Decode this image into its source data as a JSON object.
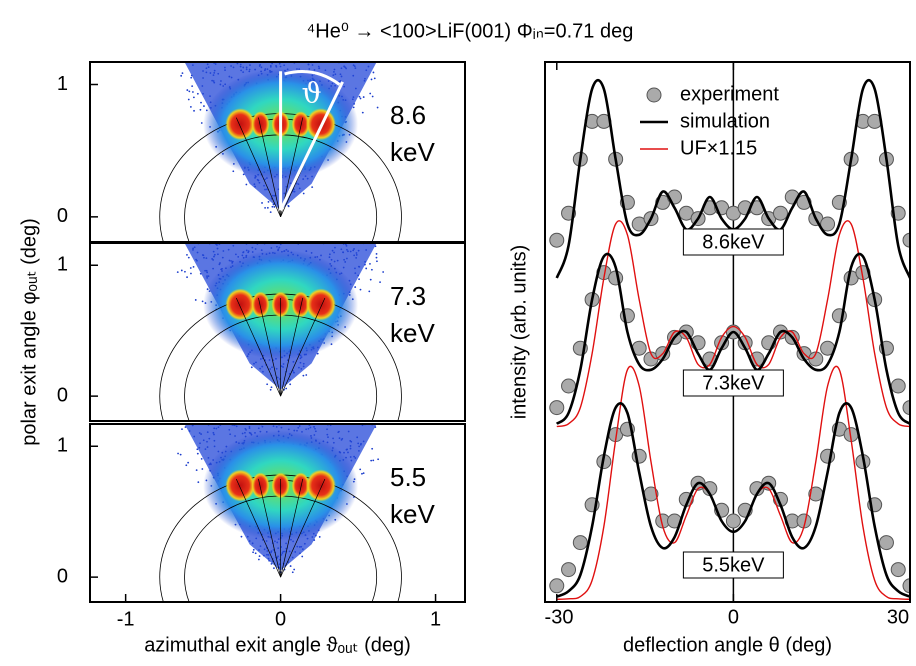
{
  "title": "⁴He⁰ → <100>LiF(001) Φᵢₙ=0.71 deg",
  "chart_data": [
    {
      "type": "image",
      "label": [
        "8.6",
        "keV"
      ],
      "annotation": "ϑ",
      "xlim": [
        -1.23,
        1.19
      ],
      "ylim": [
        -0.19,
        1.17
      ],
      "yticks": [
        0,
        1
      ]
    },
    {
      "type": "image",
      "label": [
        "7.3",
        "keV"
      ],
      "ylabel": "polar exit angle φₒᵤₜ (deg)",
      "xlim": [
        -1.23,
        1.19
      ],
      "ylim": [
        -0.19,
        1.17
      ],
      "yticks": [
        0,
        1
      ]
    },
    {
      "type": "image",
      "label": [
        "5.5",
        "keV"
      ],
      "xlabel": "azimuthal exit angle ϑₒᵤₜ (deg)",
      "xlim": [
        -1.23,
        1.19
      ],
      "ylim": [
        -0.19,
        1.17
      ],
      "yticks": [
        0,
        1
      ],
      "xticks": [
        -1,
        0,
        1
      ]
    },
    {
      "type": "line",
      "xlabel": "deflection angle θ (deg)",
      "ylabel": "intensity (arb. units)",
      "xlim": [
        -32,
        30
      ],
      "ylim": [
        0,
        10
      ],
      "xticks": [
        -30,
        0,
        30
      ],
      "vline": 0,
      "legend": "top",
      "curve_labels": [
        "8.6keV",
        "7.3keV",
        "5.5keV"
      ],
      "x": [
        -30,
        -28,
        -26,
        -24,
        -22,
        -20,
        -18,
        -16,
        -14,
        -12,
        -10,
        -8,
        -6,
        -4,
        -2,
        0,
        2,
        4,
        6,
        8,
        10,
        12,
        14,
        16,
        18,
        20,
        22,
        24,
        26,
        28,
        30
      ],
      "series": [
        {
          "name": "experiment",
          "color": "#aaaaaa",
          "marker": "circle",
          "values": [
            6.7,
            7.2,
            8.2,
            8.9,
            8.9,
            8.2,
            7.4,
            7.0,
            7.1,
            7.4,
            7.5,
            7.2,
            7.1,
            7.3,
            7.3,
            7.2,
            7.3,
            7.3,
            7.1,
            7.2,
            7.5,
            7.4,
            7.1,
            7.0,
            7.4,
            8.2,
            8.9,
            8.9,
            8.2,
            7.2,
            6.7
          ]
        },
        {
          "name": "simulation",
          "color": "#000000",
          "values": [
            6.0,
            6.6,
            8.2,
            9.5,
            9.5,
            8.2,
            7.0,
            6.8,
            7.1,
            7.6,
            7.3,
            6.9,
            7.1,
            7.5,
            7.1,
            6.9,
            7.1,
            7.5,
            7.1,
            6.9,
            7.3,
            7.6,
            7.1,
            6.8,
            7.0,
            8.2,
            9.5,
            9.5,
            8.2,
            6.6,
            6.0
          ]
        },
        {
          "name": "experiment",
          "color": "#aaaaaa",
          "marker": "circle",
          "values": [
            3.6,
            4.0,
            4.7,
            5.6,
            6.1,
            6.0,
            5.3,
            4.7,
            4.5,
            4.6,
            4.9,
            5.0,
            4.8,
            4.5,
            4.8,
            5.0,
            4.8,
            4.5,
            4.8,
            5.0,
            4.9,
            4.6,
            4.5,
            4.7,
            5.3,
            6.0,
            6.1,
            5.6,
            4.7,
            4.0,
            3.6
          ]
        },
        {
          "name": "UF×1.15",
          "color": "#e01010",
          "values": [
            3.25,
            3.3,
            3.6,
            4.6,
            6.0,
            7.0,
            6.8,
            5.6,
            4.6,
            4.6,
            5.0,
            4.9,
            4.4,
            4.4,
            4.9,
            5.1,
            4.9,
            4.4,
            4.4,
            4.9,
            5.0,
            4.6,
            4.6,
            5.6,
            6.8,
            7.0,
            6.0,
            4.6,
            3.6,
            3.3,
            3.25
          ]
        },
        {
          "name": "simulation",
          "color": "#000000",
          "values": [
            3.3,
            3.5,
            4.3,
            5.6,
            6.4,
            6.2,
            5.0,
            4.4,
            4.3,
            4.5,
            4.9,
            5.0,
            4.6,
            4.3,
            4.7,
            5.0,
            4.7,
            4.3,
            4.6,
            5.0,
            4.9,
            4.5,
            4.3,
            4.4,
            5.0,
            6.2,
            6.4,
            5.6,
            4.3,
            3.5,
            3.3
          ]
        },
        {
          "name": "experiment",
          "color": "#aaaaaa",
          "marker": "circle",
          "values": [
            0.3,
            0.6,
            1.1,
            1.8,
            2.6,
            3.1,
            3.2,
            2.7,
            2.0,
            1.5,
            1.5,
            1.9,
            2.2,
            2.1,
            1.7,
            1.5,
            1.7,
            2.1,
            2.2,
            1.9,
            1.5,
            1.5,
            2.0,
            2.7,
            3.2,
            3.1,
            2.6,
            1.8,
            1.1,
            0.6,
            0.3
          ]
        },
        {
          "name": "UF×1.15",
          "color": "#e01010",
          "values": [
            0.05,
            0.06,
            0.1,
            0.4,
            1.4,
            3.0,
            4.3,
            4.0,
            2.6,
            1.4,
            1.1,
            1.6,
            2.1,
            2.0,
            1.5,
            1.3,
            1.5,
            2.0,
            2.1,
            1.6,
            1.1,
            1.4,
            2.6,
            4.0,
            4.3,
            3.0,
            1.4,
            0.4,
            0.1,
            0.06,
            0.05
          ]
        },
        {
          "name": "simulation",
          "color": "#000000",
          "values": [
            0.1,
            0.2,
            0.5,
            1.4,
            2.7,
            3.6,
            3.5,
            2.4,
            1.4,
            1.0,
            1.2,
            1.8,
            2.2,
            2.0,
            1.5,
            1.3,
            1.5,
            2.0,
            2.2,
            1.8,
            1.2,
            1.0,
            1.4,
            2.4,
            3.5,
            3.6,
            2.7,
            1.4,
            0.5,
            0.2,
            0.1
          ]
        }
      ]
    }
  ]
}
